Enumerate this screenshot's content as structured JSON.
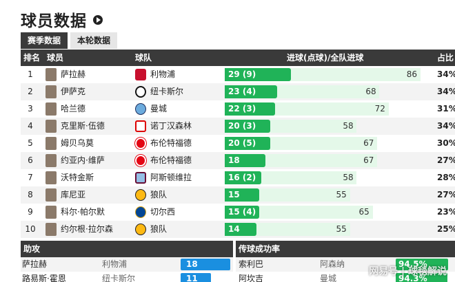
{
  "page_title": "球员数据",
  "tabs": [
    {
      "label": "赛季数据"
    },
    {
      "label": "本轮数据"
    }
  ],
  "main_table": {
    "headers": {
      "rank": "排名",
      "player": "球员",
      "team": "球队",
      "goals": "进球(点球)/全队进球",
      "share": "占比"
    },
    "rows": [
      {
        "rank": "1",
        "player": "萨拉赫",
        "team": "利物浦",
        "goals": "29 (9)",
        "team_goals": "86",
        "share": "34%",
        "g": 29,
        "tg": 86,
        "crest": "liverpool-crest"
      },
      {
        "rank": "2",
        "player": "伊萨克",
        "team": "纽卡斯尔",
        "goals": "23 (4)",
        "team_goals": "68",
        "share": "34%",
        "g": 23,
        "tg": 68,
        "crest": "newcastle-crest"
      },
      {
        "rank": "3",
        "player": "哈兰德",
        "team": "曼城",
        "goals": "22 (3)",
        "team_goals": "72",
        "share": "31%",
        "g": 22,
        "tg": 72,
        "crest": "mancity-crest"
      },
      {
        "rank": "4",
        "player": "克里斯·伍德",
        "team": "诺丁汉森林",
        "goals": "20 (3)",
        "team_goals": "58",
        "share": "34%",
        "g": 20,
        "tg": 58,
        "crest": "forest-crest"
      },
      {
        "rank": "5",
        "player": "姆贝乌莫",
        "team": "布伦特福德",
        "goals": "20 (5)",
        "team_goals": "67",
        "share": "30%",
        "g": 20,
        "tg": 67,
        "crest": "brentford-crest"
      },
      {
        "rank": "6",
        "player": "约亚内·维萨",
        "team": "布伦特福德",
        "goals": "18",
        "team_goals": "67",
        "share": "27%",
        "g": 18,
        "tg": 67,
        "crest": "brentford-crest"
      },
      {
        "rank": "7",
        "player": "沃特金斯",
        "team": "阿斯顿维拉",
        "goals": "16 (2)",
        "team_goals": "58",
        "share": "28%",
        "g": 16,
        "tg": 58,
        "crest": "villa-crest"
      },
      {
        "rank": "8",
        "player": "库尼亚",
        "team": "狼队",
        "goals": "15",
        "team_goals": "55",
        "share": "27%",
        "g": 15,
        "tg": 55,
        "crest": "wolves-crest"
      },
      {
        "rank": "9",
        "player": "科尔·帕尔默",
        "team": "切尔西",
        "goals": "15 (4)",
        "team_goals": "65",
        "share": "23%",
        "g": 15,
        "tg": 65,
        "crest": "chelsea-crest"
      },
      {
        "rank": "10",
        "player": "约尔根·拉尔森",
        "team": "狼队",
        "goals": "14",
        "team_goals": "55",
        "share": "25%",
        "g": 14,
        "tg": 55,
        "crest": "wolves-crest"
      }
    ]
  },
  "assists_panel": {
    "title": "助攻",
    "rows": [
      {
        "player": "萨拉赫",
        "team": "利物浦",
        "value": "18",
        "v": 18
      },
      {
        "player": "路易斯·霍恩",
        "team": "纽卡斯尔",
        "value": "11",
        "v": 11
      }
    ]
  },
  "passing_panel": {
    "title": "传球成功率",
    "rows": [
      {
        "player": "索利巴",
        "team": "阿森纳",
        "value": "94.5%",
        "v": 0.945
      },
      {
        "player": "阿坎吉",
        "team": "曼城",
        "value": "94.3%",
        "v": 0.943
      }
    ]
  },
  "watermark": "网易号 | 球毯解说",
  "colors": {
    "header_bg": "#3a3a3a",
    "bar_green": "#20b358",
    "bar_light": "#e4f8e9",
    "assist_blue": "#1a8fe0"
  }
}
